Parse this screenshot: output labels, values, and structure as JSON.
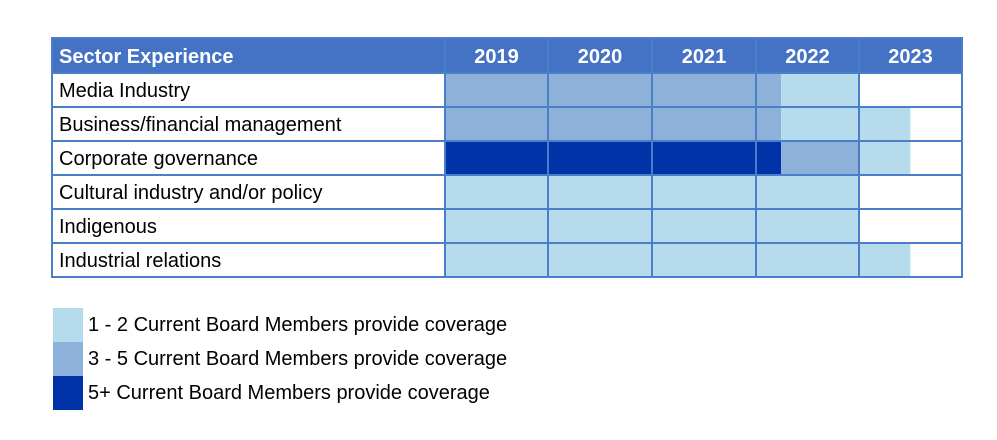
{
  "chart_data": {
    "type": "table",
    "title": "Sector Experience",
    "years": [
      "2019",
      "2020",
      "2021",
      "2022",
      "2023"
    ],
    "levels": {
      "none": "#ffffff",
      "low": "#b6dbed",
      "mid": "#8eb1da",
      "high": "#0033a8"
    },
    "rows": [
      {
        "label": "Media Industry",
        "coverage": [
          {
            "start": 0.0,
            "end": 3.0,
            "level": "mid"
          },
          {
            "start": 3.0,
            "end": 3.25,
            "level": "mid"
          },
          {
            "start": 3.25,
            "end": 4.0,
            "level": "low"
          }
        ]
      },
      {
        "label": "Business/financial management",
        "coverage": [
          {
            "start": 0.0,
            "end": 3.25,
            "level": "mid"
          },
          {
            "start": 3.25,
            "end": 4.0,
            "level": "low"
          },
          {
            "start": 4.0,
            "end": 4.5,
            "level": "low"
          }
        ]
      },
      {
        "label": "Corporate governance",
        "coverage": [
          {
            "start": 0.0,
            "end": 3.25,
            "level": "high"
          },
          {
            "start": 3.25,
            "end": 4.0,
            "level": "mid"
          },
          {
            "start": 4.0,
            "end": 4.5,
            "level": "low"
          }
        ]
      },
      {
        "label": "Cultural industry and/or policy",
        "coverage": [
          {
            "start": 0.0,
            "end": 4.0,
            "level": "low"
          }
        ]
      },
      {
        "label": "Indigenous",
        "coverage": [
          {
            "start": 0.0,
            "end": 4.0,
            "level": "low"
          }
        ]
      },
      {
        "label": "Industrial relations",
        "coverage": [
          {
            "start": 0.0,
            "end": 4.5,
            "level": "low"
          }
        ]
      }
    ],
    "legend": [
      {
        "label": "1 - 2 Current Board Members provide coverage",
        "color": "#b6dbed"
      },
      {
        "label": "3 - 5 Current Board Members provide coverage",
        "color": "#8eb1da"
      },
      {
        "label": "5+ Current Board Members provide coverage",
        "color": "#0033a8"
      }
    ],
    "colors": {
      "header": "#4472c4",
      "border": "#4a7ec8"
    }
  }
}
